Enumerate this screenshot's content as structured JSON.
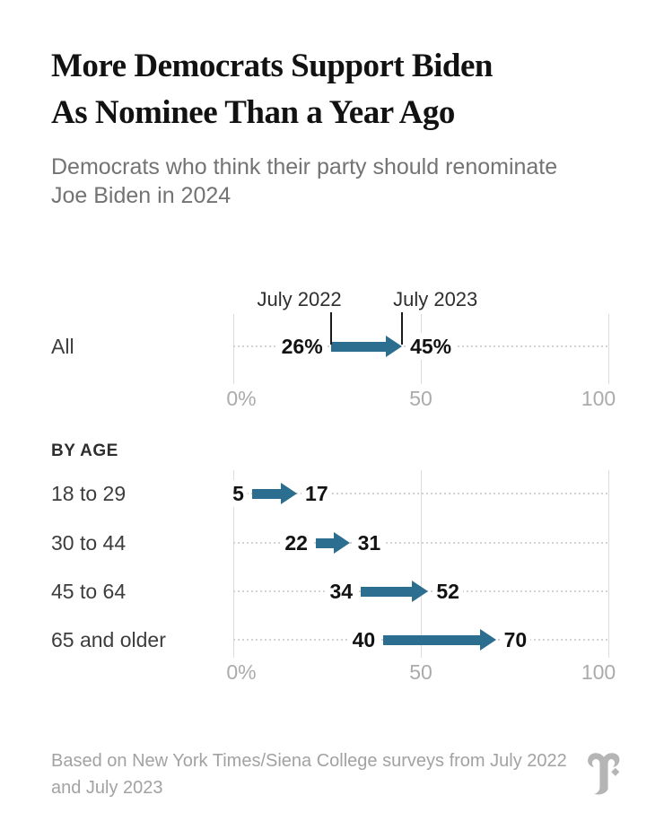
{
  "header": {
    "title": "More Democrats Support Biden\nAs Nominee Than a Year Ago",
    "subtitle": "Democrats who think their party should renominate\nJoe Biden in 2024"
  },
  "colors": {
    "arrow": "#2c6e8f",
    "title_text": "#121212",
    "subtitle_text": "#737373",
    "section_text": "#2e2e2e",
    "row_label_text": "#3d3d3d",
    "value_label_text": "#121212",
    "annotation_text": "#2e2e2e",
    "axis_label_text": "#ababab",
    "gridline": "#dcdcdc",
    "dotted_line": "#d2d2d2",
    "pointer_line": "#1a1a1a",
    "footer_text": "#a2a2a2",
    "logo": "#b5b5b5"
  },
  "chart_data": [
    {
      "type": "arrow",
      "annotations": [
        "July 2022",
        "July 2023"
      ],
      "categories": [
        "All"
      ],
      "series": [
        {
          "name": "July 2022",
          "values": [
            26
          ]
        },
        {
          "name": "July 2023",
          "values": [
            45
          ]
        }
      ],
      "start_labels": [
        "26%"
      ],
      "end_labels": [
        "45%"
      ],
      "xlim": [
        0,
        100
      ],
      "x_ticks": [
        {
          "value": 0,
          "label": "0%"
        },
        {
          "value": 50,
          "label": "50"
        },
        {
          "value": 100,
          "label": "100"
        }
      ],
      "grid": true,
      "legend_position": "above first row with pointer lines"
    },
    {
      "type": "arrow",
      "section_label": "BY AGE",
      "categories": [
        "18 to 29",
        "30 to 44",
        "45 to 64",
        "65 and older"
      ],
      "series": [
        {
          "name": "July 2022",
          "values": [
            5,
            22,
            34,
            40
          ]
        },
        {
          "name": "July 2023",
          "values": [
            17,
            31,
            52,
            70
          ]
        }
      ],
      "start_labels": [
        "5",
        "22",
        "34",
        "40"
      ],
      "end_labels": [
        "17",
        "31",
        "52",
        "70"
      ],
      "xlim": [
        0,
        100
      ],
      "x_ticks": [
        {
          "value": 0,
          "label": "0%"
        },
        {
          "value": 50,
          "label": "50"
        },
        {
          "value": 100,
          "label": "100"
        }
      ],
      "grid": true
    }
  ],
  "footer": {
    "source": "Based on New York Times/Siena College surveys from July 2022\nand July 2023",
    "logo": "new-york-times-t-logo"
  }
}
